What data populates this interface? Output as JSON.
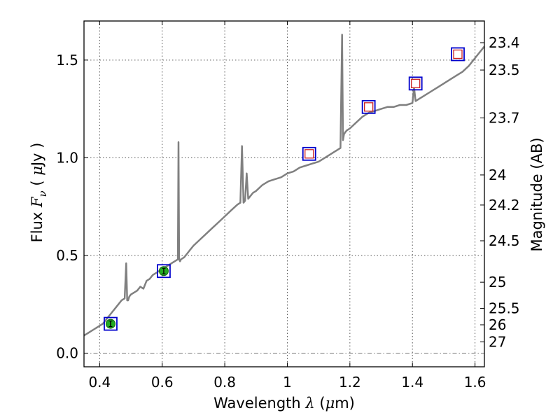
{
  "chart_data": {
    "type": "line",
    "xlabel": "Wavelength  λ (μm)",
    "ylabel": "Flux  F_ν  ( μJy )",
    "ylabel_right": "Magnitude (AB)",
    "xlim": [
      0.35,
      1.63
    ],
    "ylim": [
      -0.07,
      1.7
    ],
    "x_ticks": [
      0.4,
      0.6,
      0.8,
      1.0,
      1.2,
      1.4,
      1.6
    ],
    "x_tick_labels": [
      "0.4",
      "0.6",
      "0.8",
      "1",
      "1.2",
      "1.4",
      "1.6"
    ],
    "y_ticks": [
      0.0,
      0.5,
      1.0,
      1.5
    ],
    "y_tick_labels": [
      "0.0",
      "0.5",
      "1.0",
      "1.5"
    ],
    "right_ticks": [
      {
        "flux": 1.589,
        "label": "23.4"
      },
      {
        "flux": 1.449,
        "label": "23.5"
      },
      {
        "flux": 1.204,
        "label": "23.7"
      },
      {
        "flux": 0.912,
        "label": "24"
      },
      {
        "flux": 0.758,
        "label": "24.2"
      },
      {
        "flux": 0.575,
        "label": "24.5"
      },
      {
        "flux": 0.363,
        "label": "25"
      },
      {
        "flux": 0.229,
        "label": "25.5"
      },
      {
        "flux": 0.145,
        "label": "26"
      },
      {
        "flux": 0.058,
        "label": "27"
      }
    ],
    "grid": true,
    "zero_line": true,
    "colors": {
      "spectrum": "#808080",
      "square_edge": "#0000cc",
      "photometry_fill": "#22aa22",
      "model_square_edge": "#cc2222",
      "grid": "#555555"
    },
    "series": [
      {
        "kind": "spectrum",
        "x": [
          0.35,
          0.36,
          0.37,
          0.38,
          0.39,
          0.4,
          0.41,
          0.42,
          0.43,
          0.44,
          0.45,
          0.46,
          0.47,
          0.48,
          0.485,
          0.488,
          0.491,
          0.495,
          0.5,
          0.51,
          0.52,
          0.53,
          0.54,
          0.55,
          0.56,
          0.57,
          0.58,
          0.59,
          0.6,
          0.61,
          0.62,
          0.63,
          0.64,
          0.65,
          0.652,
          0.654,
          0.657,
          0.66,
          0.67,
          0.68,
          0.69,
          0.7,
          0.72,
          0.74,
          0.76,
          0.78,
          0.8,
          0.82,
          0.84,
          0.85,
          0.855,
          0.86,
          0.865,
          0.87,
          0.875,
          0.88,
          0.89,
          0.9,
          0.92,
          0.94,
          0.96,
          0.98,
          1.0,
          1.02,
          1.04,
          1.06,
          1.08,
          1.1,
          1.12,
          1.14,
          1.16,
          1.17,
          1.175,
          1.178,
          1.181,
          1.185,
          1.19,
          1.2,
          1.22,
          1.24,
          1.26,
          1.28,
          1.3,
          1.32,
          1.34,
          1.36,
          1.38,
          1.4,
          1.405,
          1.41,
          1.42,
          1.44,
          1.46,
          1.48,
          1.5,
          1.52,
          1.54,
          1.56,
          1.58,
          1.6,
          1.62,
          1.63
        ],
        "y": [
          0.09,
          0.1,
          0.11,
          0.12,
          0.13,
          0.14,
          0.15,
          0.17,
          0.19,
          0.21,
          0.23,
          0.25,
          0.27,
          0.28,
          0.46,
          0.27,
          0.27,
          0.29,
          0.3,
          0.31,
          0.32,
          0.34,
          0.33,
          0.37,
          0.38,
          0.4,
          0.41,
          0.42,
          0.43,
          0.44,
          0.45,
          0.46,
          0.47,
          0.48,
          1.08,
          0.48,
          0.47,
          0.48,
          0.49,
          0.51,
          0.53,
          0.55,
          0.58,
          0.61,
          0.64,
          0.67,
          0.7,
          0.73,
          0.76,
          0.77,
          1.06,
          0.77,
          0.78,
          0.92,
          0.79,
          0.8,
          0.82,
          0.83,
          0.86,
          0.88,
          0.89,
          0.9,
          0.92,
          0.93,
          0.95,
          0.96,
          0.97,
          0.98,
          1.0,
          1.02,
          1.04,
          1.05,
          1.63,
          1.09,
          1.12,
          1.13,
          1.14,
          1.15,
          1.18,
          1.21,
          1.23,
          1.24,
          1.25,
          1.26,
          1.26,
          1.27,
          1.27,
          1.28,
          1.36,
          1.29,
          1.3,
          1.32,
          1.34,
          1.36,
          1.38,
          1.4,
          1.42,
          1.44,
          1.47,
          1.51,
          1.55,
          1.57
        ]
      },
      {
        "kind": "photometry-green",
        "x": [
          0.435,
          0.605
        ],
        "y": [
          0.15,
          0.42
        ]
      },
      {
        "kind": "photometry-model",
        "x": [
          1.07,
          1.26,
          1.41,
          1.545
        ],
        "y": [
          1.02,
          1.26,
          1.38,
          1.53
        ]
      }
    ]
  }
}
